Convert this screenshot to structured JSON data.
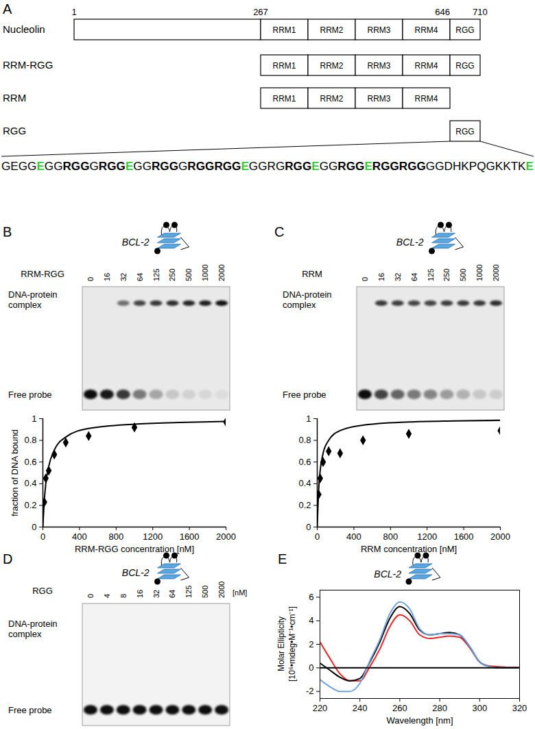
{
  "diagram": {
    "panel": "A",
    "residues": [
      1,
      267,
      646,
      710
    ],
    "proteins": [
      {
        "label": "Nucleolin",
        "domains": [
          null,
          "RRM1",
          "RRM2",
          "RRM3",
          "RRM4",
          "RGG"
        ]
      },
      {
        "label": "RRM-RGG",
        "domains": [
          "RRM1",
          "RRM2",
          "RRM3",
          "RRM4",
          "RGG"
        ]
      },
      {
        "label": "RRM",
        "domains": [
          "RRM1",
          "RRM2",
          "RRM3",
          "RRM4"
        ]
      },
      {
        "label": "RGG",
        "domains": [
          "RGG"
        ]
      }
    ],
    "sequence": [
      {
        "text": "GEGG",
        "style": "normal"
      },
      {
        "text": "E",
        "style": "green"
      },
      {
        "text": "GG",
        "style": "normal"
      },
      {
        "text": "RGG",
        "style": "bold"
      },
      {
        "text": "G",
        "style": "normal"
      },
      {
        "text": "RGG",
        "style": "bold"
      },
      {
        "text": "E",
        "style": "green"
      },
      {
        "text": "GG",
        "style": "normal"
      },
      {
        "text": "RGG",
        "style": "bold"
      },
      {
        "text": "G",
        "style": "normal"
      },
      {
        "text": "RGGRGG",
        "style": "bold"
      },
      {
        "text": "E",
        "style": "green"
      },
      {
        "text": "GGRG",
        "style": "normal"
      },
      {
        "text": "RGG",
        "style": "bold"
      },
      {
        "text": "E",
        "style": "green"
      },
      {
        "text": "GG",
        "style": "normal"
      },
      {
        "text": "RGG",
        "style": "bold"
      },
      {
        "text": "E",
        "style": "green"
      },
      {
        "text": "RGGRGG",
        "style": "bold"
      },
      {
        "text": "GGDHKPQGKKTK",
        "style": "normal"
      },
      {
        "text": "E",
        "style": "green"
      }
    ]
  },
  "gels": [
    {
      "panel": "B",
      "title": "BCL-2",
      "protein": "RRM-RGG",
      "lanes": [
        0,
        16,
        32,
        64,
        125,
        250,
        500,
        1000,
        2000
      ],
      "band_labels": [
        "DNA-protein complex",
        "Free probe"
      ],
      "complex": [
        0,
        0,
        0.55,
        0.75,
        0.8,
        0.85,
        0.88,
        0.92,
        0.98
      ],
      "free": [
        1,
        0.95,
        0.8,
        0.5,
        0.3,
        0.15,
        0.1,
        0.08,
        0.05
      ]
    },
    {
      "panel": "C",
      "title": "BCL-2",
      "protein": "RRM",
      "lanes": [
        0,
        16,
        32,
        64,
        125,
        250,
        500,
        1000,
        2000
      ],
      "band_labels": [
        "DNA-protein complex",
        "Free probe"
      ],
      "complex": [
        0,
        0.8,
        0.78,
        0.75,
        0.75,
        0.78,
        0.8,
        0.8,
        0.85
      ],
      "free": [
        1,
        0.75,
        0.6,
        0.5,
        0.45,
        0.35,
        0.25,
        0.15,
        0.12
      ]
    },
    {
      "panel": "D",
      "title": "BCL-2",
      "protein": "RGG",
      "unit": "[nM]",
      "lanes": [
        0,
        4,
        8,
        16,
        32,
        64,
        125,
        500,
        2000
      ],
      "band_labels": [
        "DNA-protein complex",
        "Free probe"
      ],
      "complex": [
        0,
        0,
        0,
        0,
        0,
        0,
        0,
        0,
        0
      ],
      "free": [
        1,
        1,
        1,
        1,
        1,
        1,
        1,
        1,
        1
      ]
    }
  ],
  "chart_data": [
    {
      "panel": "B",
      "type": "scatter",
      "x_label": "RRM-RGG concentration [nM]",
      "y_label": "fraction of DNA bound",
      "xlim": [
        0,
        2000
      ],
      "xticks": [
        0,
        400,
        800,
        1200,
        1600,
        2000
      ],
      "ylim": [
        0,
        1
      ],
      "yticks": [
        0,
        0.2,
        0.4,
        0.6,
        0.8,
        1
      ],
      "grid": false,
      "series": [
        {
          "type": "scatter",
          "marker": "diamond",
          "color": "#000000",
          "x": [
            16,
            32,
            64,
            125,
            250,
            500,
            1000,
            2000
          ],
          "values": [
            0.23,
            0.45,
            0.52,
            0.67,
            0.78,
            0.84,
            0.92,
            0.97
          ],
          "errors": [
            0.03,
            0.03,
            0.03,
            0.04,
            0.03,
            0.02,
            0.03,
            0.02
          ]
        },
        {
          "type": "line",
          "line_style": "solid",
          "color": "#000000",
          "x": [
            0,
            16,
            32,
            64,
            125,
            250,
            500,
            1000,
            1500,
            2000
          ],
          "values": [
            0,
            0.25,
            0.4,
            0.56,
            0.71,
            0.83,
            0.91,
            0.95,
            0.965,
            0.975
          ]
        }
      ]
    },
    {
      "panel": "C",
      "type": "scatter",
      "x_label": "RRM concentration [nM]",
      "xlim": [
        0,
        2000
      ],
      "xticks": [
        0,
        400,
        800,
        1200,
        1600,
        2000
      ],
      "ylim": [
        0,
        1
      ],
      "yticks": [
        0,
        0.2,
        0.4,
        0.6,
        0.8,
        1
      ],
      "grid": false,
      "series": [
        {
          "type": "scatter",
          "marker": "diamond",
          "color": "#000000",
          "x": [
            16,
            32,
            64,
            125,
            250,
            500,
            1000,
            2000
          ],
          "values": [
            0.3,
            0.45,
            0.6,
            0.7,
            0.68,
            0.8,
            0.86,
            0.89
          ],
          "errors": [
            0.03,
            0.03,
            0.04,
            0.04,
            0.04,
            0.03,
            0.03,
            0.03
          ]
        },
        {
          "type": "line",
          "line_style": "solid",
          "color": "#000000",
          "x": [
            0,
            16,
            32,
            64,
            125,
            250,
            500,
            1000,
            1500,
            2000
          ],
          "values": [
            0,
            0.35,
            0.52,
            0.68,
            0.8,
            0.89,
            0.94,
            0.97,
            0.98,
            0.985
          ]
        }
      ]
    },
    {
      "panel": "E",
      "type": "line",
      "title": "BCL-2",
      "x_label": "Wavelength [nm]",
      "y_label": "Molar Ellipticity\n[10⁶•mdeg•M⁻¹•cm⁻¹]",
      "xlim": [
        220,
        320
      ],
      "xticks": [
        220,
        240,
        260,
        280,
        300,
        320
      ],
      "ylim": [
        -2.6,
        6.6
      ],
      "yticks": [
        -2,
        0,
        2,
        4,
        6
      ],
      "baseline": 0,
      "grid": false,
      "x": [
        220,
        225,
        230,
        235,
        240,
        245,
        250,
        255,
        260,
        265,
        270,
        275,
        280,
        285,
        290,
        295,
        300,
        305,
        310,
        315,
        320
      ],
      "series": [
        {
          "color": "#e8262a",
          "values": [
            2.2,
            0.8,
            -0.5,
            -1.1,
            -1.1,
            0.1,
            1.6,
            3.5,
            4.5,
            4.0,
            2.8,
            2.5,
            2.6,
            2.7,
            2.6,
            1.7,
            0.5,
            0.15,
            0.1,
            0.05,
            0.05
          ]
        },
        {
          "color": "#000000",
          "values": [
            0.4,
            -0.2,
            -0.8,
            -1.1,
            -0.9,
            0.5,
            2.2,
            4.2,
            5.2,
            4.6,
            3.2,
            2.8,
            2.9,
            3.0,
            2.8,
            1.8,
            0.5,
            0.1,
            0,
            0,
            0
          ]
        },
        {
          "color": "#6fa3dc",
          "values": [
            -1.0,
            -1.6,
            -2.0,
            -2.0,
            -1.3,
            0.6,
            2.4,
            4.6,
            5.6,
            5.0,
            3.3,
            2.8,
            2.9,
            2.9,
            2.8,
            1.8,
            0.5,
            0.1,
            0,
            0,
            0
          ]
        }
      ]
    }
  ]
}
